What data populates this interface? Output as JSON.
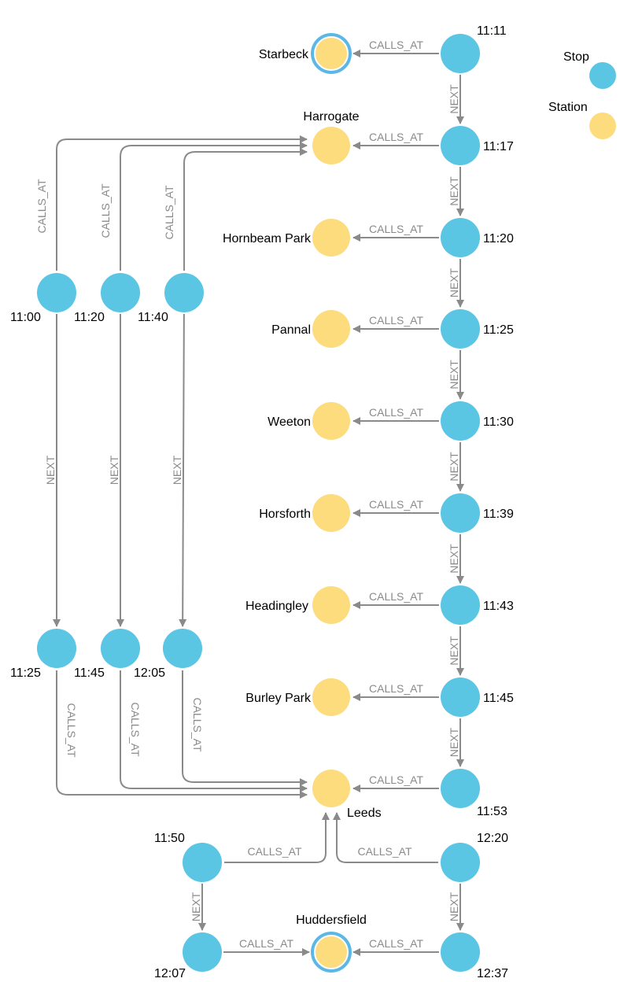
{
  "colors": {
    "stop": "#5bc6e3",
    "station": "#fddc7e",
    "highlight_ring": "#5bb8e6",
    "edge": "#8a8a8a"
  },
  "legend": {
    "stop": "Stop",
    "station": "Station"
  },
  "edge_labels": {
    "calls_at": "CALLS_AT",
    "next": "NEXT"
  },
  "stations": [
    {
      "id": "starbeck",
      "name": "Starbeck",
      "highlighted": true
    },
    {
      "id": "harrogate",
      "name": "Harrogate",
      "highlighted": false
    },
    {
      "id": "hornbeam",
      "name": "Hornbeam Park",
      "highlighted": false
    },
    {
      "id": "pannal",
      "name": "Pannal",
      "highlighted": false
    },
    {
      "id": "weeton",
      "name": "Weeton",
      "highlighted": false
    },
    {
      "id": "horsforth",
      "name": "Horsforth",
      "highlighted": false
    },
    {
      "id": "headingley",
      "name": "Headingley",
      "highlighted": false
    },
    {
      "id": "burley",
      "name": "Burley Park",
      "highlighted": false
    },
    {
      "id": "leeds",
      "name": "Leeds",
      "highlighted": false
    },
    {
      "id": "huddersfield",
      "name": "Huddersfield",
      "highlighted": true
    }
  ],
  "stops": [
    {
      "id": "r1",
      "time": "11:11"
    },
    {
      "id": "r2",
      "time": "11:17"
    },
    {
      "id": "r3",
      "time": "11:20"
    },
    {
      "id": "r4",
      "time": "11:25"
    },
    {
      "id": "r5",
      "time": "11:30"
    },
    {
      "id": "r6",
      "time": "11:39"
    },
    {
      "id": "r7",
      "time": "11:43"
    },
    {
      "id": "r8",
      "time": "11:45"
    },
    {
      "id": "r9",
      "time": "11:53"
    },
    {
      "id": "l1",
      "time": "11:00"
    },
    {
      "id": "l2",
      "time": "11:20"
    },
    {
      "id": "l3",
      "time": "11:40"
    },
    {
      "id": "l4",
      "time": "11:25"
    },
    {
      "id": "l5",
      "time": "11:45"
    },
    {
      "id": "l6",
      "time": "12:05"
    },
    {
      "id": "b1",
      "time": "11:50"
    },
    {
      "id": "b2",
      "time": "12:07"
    },
    {
      "id": "b3",
      "time": "12:20"
    },
    {
      "id": "b4",
      "time": "12:37"
    }
  ],
  "edges": [
    {
      "from": "r1",
      "to": "starbeck",
      "type": "calls_at"
    },
    {
      "from": "r2",
      "to": "harrogate",
      "type": "calls_at"
    },
    {
      "from": "r3",
      "to": "hornbeam",
      "type": "calls_at"
    },
    {
      "from": "r4",
      "to": "pannal",
      "type": "calls_at"
    },
    {
      "from": "r5",
      "to": "weeton",
      "type": "calls_at"
    },
    {
      "from": "r6",
      "to": "horsforth",
      "type": "calls_at"
    },
    {
      "from": "r7",
      "to": "headingley",
      "type": "calls_at"
    },
    {
      "from": "r8",
      "to": "burley",
      "type": "calls_at"
    },
    {
      "from": "r9",
      "to": "leeds",
      "type": "calls_at"
    },
    {
      "from": "r1",
      "to": "r2",
      "type": "next"
    },
    {
      "from": "r2",
      "to": "r3",
      "type": "next"
    },
    {
      "from": "r3",
      "to": "r4",
      "type": "next"
    },
    {
      "from": "r4",
      "to": "r5",
      "type": "next"
    },
    {
      "from": "r5",
      "to": "r6",
      "type": "next"
    },
    {
      "from": "r6",
      "to": "r7",
      "type": "next"
    },
    {
      "from": "r7",
      "to": "r8",
      "type": "next"
    },
    {
      "from": "r8",
      "to": "r9",
      "type": "next"
    },
    {
      "from": "l1",
      "to": "harrogate",
      "type": "calls_at"
    },
    {
      "from": "l2",
      "to": "harrogate",
      "type": "calls_at"
    },
    {
      "from": "l3",
      "to": "harrogate",
      "type": "calls_at"
    },
    {
      "from": "l1",
      "to": "l4",
      "type": "next"
    },
    {
      "from": "l2",
      "to": "l5",
      "type": "next"
    },
    {
      "from": "l3",
      "to": "l6",
      "type": "next"
    },
    {
      "from": "l4",
      "to": "leeds",
      "type": "calls_at"
    },
    {
      "from": "l5",
      "to": "leeds",
      "type": "calls_at"
    },
    {
      "from": "l6",
      "to": "leeds",
      "type": "calls_at"
    },
    {
      "from": "b1",
      "to": "leeds",
      "type": "calls_at"
    },
    {
      "from": "b3",
      "to": "leeds",
      "type": "calls_at"
    },
    {
      "from": "b1",
      "to": "b2",
      "type": "next"
    },
    {
      "from": "b3",
      "to": "b4",
      "type": "next"
    },
    {
      "from": "b2",
      "to": "huddersfield",
      "type": "calls_at"
    },
    {
      "from": "b4",
      "to": "huddersfield",
      "type": "calls_at"
    }
  ]
}
